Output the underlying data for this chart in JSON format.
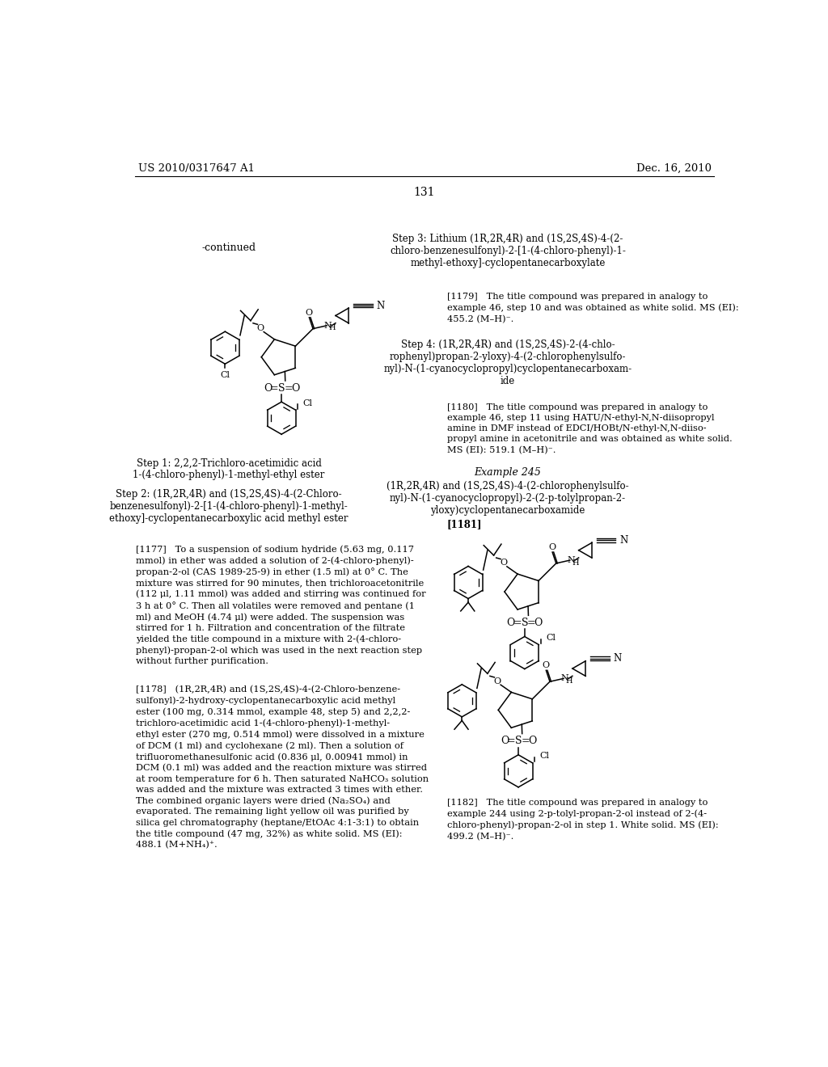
{
  "bg_color": "#ffffff",
  "header_left": "US 2010/0317647 A1",
  "header_right": "Dec. 16, 2010",
  "page_number": "131",
  "continued_text": "-continued",
  "step1_title": "Step 1: 2,2,2-Trichloro-acetimidic acid\n1-(4-chloro-phenyl)-1-methyl-ethyl ester",
  "step2_title": "Step 2: (1R,2R,4R) and (1S,2S,4S)-4-(2-Chloro-\nbenzenesulfonyl)-2-[1-(4-chloro-phenyl)-1-methyl-\nethoxy]-cyclopentanecarboxylic acid methyl ester",
  "step3_title": "Step 3: Lithium (1R,2R,4R) and (1S,2S,4S)-4-(2-\nchloro-benzenesulfonyl)-2-[1-(4-chloro-phenyl)-1-\nmethyl-ethoxy]-cyclopentanecarboxylate",
  "step4_title": "Step 4: (1R,2R,4R) and (1S,2S,4S)-2-(4-chlo-\nrophenyl)propan-2-yloxy)-4-(2-chlorophenylsulfo-\nnyl)-N-(1-cyanocyclopropyl)cyclopentanecarboxam-\nide",
  "para_1177": "[1177]   To a suspension of sodium hydride (5.63 mg, 0.117\nmmol) in ether was added a solution of 2-(4-chloro-phenyl)-\npropan-2-ol (CAS 1989-25-9) in ether (1.5 ml) at 0° C. The\nmixture was stirred for 90 minutes, then trichloroacetonitrile\n(112 μl, 1.11 mmol) was added and stirring was continued for\n3 h at 0° C. Then all volatiles were removed and pentane (1\nml) and MeOH (4.74 μl) were added. The suspension was\nstirred for 1 h. Filtration and concentration of the filtrate\nyielded the title compound in a mixture with 2-(4-chloro-\nphenyl)-propan-2-ol which was used in the next reaction step\nwithout further purification.",
  "para_1178": "[1178]   (1R,2R,4R) and (1S,2S,4S)-4-(2-Chloro-benzene-\nsulfonyl)-2-hydroxy-cyclopentanecarboxylic acid methyl\nester (100 mg, 0.314 mmol, example 48, step 5) and 2,2,2-\ntrichloro-acetimidic acid 1-(4-chloro-phenyl)-1-methyl-\nethyl ester (270 mg, 0.514 mmol) were dissolved in a mixture\nof DCM (1 ml) and cyclohexane (2 ml). Then a solution of\ntrifluoromethanesulfonic acid (0.836 μl, 0.00941 mmol) in\nDCM (0.1 ml) was added and the reaction mixture was stirred\nat room temperature for 6 h. Then saturated NaHCO₃ solution\nwas added and the mixture was extracted 3 times with ether.\nThe combined organic layers were dried (Na₂SO₄) and\nevaporated. The remaining light yellow oil was purified by\nsilica gel chromatography (heptane/EtOAc 4:1-3:1) to obtain\nthe title compound (47 mg, 32%) as white solid. MS (EI):\n488.1 (M+NH₄)⁺.",
  "para_1179": "[1179]   The title compound was prepared in analogy to\nexample 46, step 10 and was obtained as white solid. MS (EI):\n455.2 (M–H)⁻.",
  "para_1180": "[1180]   The title compound was prepared in analogy to\nexample 46, step 11 using HATU/N-ethyl-N,N-diisopropyl\namine in DMF instead of EDCI/HOBt/N-ethyl-N,N-diiso-\npropyl amine in acetonitrile and was obtained as white solid.\nMS (EI): 519.1 (M–H)⁻.",
  "example_245_title": "Example 245",
  "example_245_subtitle": "(1R,2R,4R) and (1S,2S,4S)-4-(2-chlorophenylsulfo-\nnyl)-N-(1-cyanocyclopropyl)-2-(2-p-tolylpropan-2-\nyloxy)cyclopentanecarboxamide",
  "para_1181": "[1181]",
  "para_1182": "[1182]   The title compound was prepared in analogy to\nexample 244 using 2-p-tolyl-propan-2-ol instead of 2-(4-\nchloro-phenyl)-propan-2-ol in step 1. White solid. MS (EI):\n499.2 (M–H)⁻."
}
